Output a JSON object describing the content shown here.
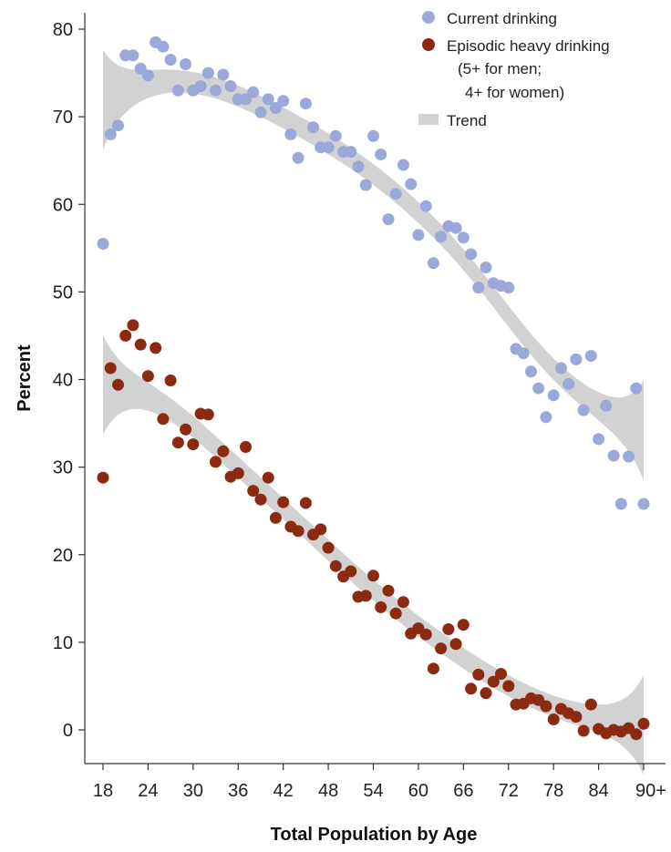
{
  "chart_data": {
    "type": "scatter",
    "xlabel": "Total Population by Age",
    "ylabel": "Percent",
    "xlim": [
      16.5,
      92.5
    ],
    "ylim": [
      -4,
      83
    ],
    "x_ticks": [
      18,
      24,
      30,
      36,
      42,
      48,
      54,
      60,
      66,
      72,
      78,
      84,
      90
    ],
    "x_tick_labels": [
      "18",
      "24",
      "30",
      "36",
      "42",
      "48",
      "54",
      "60",
      "66",
      "72",
      "78",
      "84",
      "90+"
    ],
    "y_ticks": [
      0,
      10,
      20,
      30,
      40,
      50,
      60,
      70,
      80
    ],
    "y_tick_labels": [
      "0",
      "10",
      "20",
      "30",
      "40",
      "50",
      "60",
      "70",
      "80"
    ],
    "grid": false,
    "legend_position": "top-right",
    "legend": {
      "current": "Current drinking",
      "heavy_line1": "Episodic heavy drinking",
      "heavy_line2": "(5+ for men;",
      "heavy_line3": "4+ for women)",
      "trend": "Trend"
    },
    "colors": {
      "current": "#9aa9d8",
      "heavy": "#8b2a10",
      "trend": "#d2d2d2"
    },
    "series": [
      {
        "name": "Current drinking",
        "x": [
          18,
          19,
          20,
          21,
          22,
          23,
          24,
          25,
          26,
          27,
          28,
          29,
          30,
          31,
          32,
          33,
          34,
          35,
          36,
          37,
          38,
          39,
          40,
          41,
          42,
          43,
          44,
          45,
          46,
          47,
          48,
          49,
          50,
          51,
          52,
          53,
          54,
          55,
          56,
          57,
          58,
          59,
          60,
          61,
          62,
          63,
          64,
          65,
          66,
          67,
          68,
          69,
          70,
          71,
          72,
          73,
          74,
          75,
          76,
          77,
          78,
          79,
          80,
          81,
          82,
          83,
          84,
          85,
          86,
          87,
          88,
          89,
          90
        ],
        "y": [
          55.5,
          68,
          69,
          77,
          77,
          75.5,
          74.7,
          78.5,
          78,
          76.5,
          73,
          76,
          73,
          73.5,
          75,
          73,
          74.8,
          73.5,
          72,
          72,
          72.8,
          70.5,
          72,
          71,
          71.8,
          68,
          65.3,
          71.5,
          68.8,
          66.5,
          66.5,
          67.8,
          66,
          66,
          64.3,
          62.2,
          67.8,
          65.7,
          58.3,
          61.2,
          64.5,
          62.3,
          56.5,
          59.8,
          53.3,
          56.3,
          57.5,
          57.3,
          56.2,
          54.3,
          50.5,
          52.8,
          51,
          50.7,
          50.5,
          43.5,
          43,
          40.9,
          39,
          35.7,
          38.2,
          41.3,
          39.5,
          42.3,
          36.5,
          42.7,
          33.2,
          37,
          31.3,
          25.8,
          31.2,
          39,
          25.8
        ]
      },
      {
        "name": "Episodic heavy drinking",
        "x": [
          18,
          19,
          20,
          21,
          22,
          23,
          24,
          25,
          26,
          27,
          28,
          29,
          30,
          31,
          32,
          33,
          34,
          35,
          36,
          37,
          38,
          39,
          40,
          41,
          42,
          43,
          44,
          45,
          46,
          47,
          48,
          49,
          50,
          51,
          52,
          53,
          54,
          55,
          56,
          57,
          58,
          59,
          60,
          61,
          62,
          63,
          64,
          65,
          66,
          67,
          68,
          69,
          70,
          71,
          72,
          73,
          74,
          75,
          76,
          77,
          78,
          79,
          80,
          81,
          82,
          83,
          84,
          85,
          86,
          87,
          88,
          89,
          90
        ],
        "y": [
          28.8,
          41.3,
          39.4,
          45,
          46.2,
          44,
          40.4,
          43.6,
          35.5,
          39.9,
          32.8,
          34.3,
          32.6,
          36.1,
          36,
          30.6,
          31.8,
          28.9,
          29.3,
          32.3,
          27.3,
          26.3,
          28.8,
          24.2,
          26,
          23.2,
          22.7,
          25.9,
          22.3,
          22.9,
          20.8,
          18.7,
          17.5,
          18.1,
          15.2,
          15.3,
          17.6,
          14,
          15.9,
          13.3,
          14.6,
          11,
          11.6,
          10.9,
          7,
          9.3,
          11.5,
          9.8,
          12,
          4.7,
          6.3,
          4.2,
          5.5,
          6.4,
          5,
          2.9,
          3,
          3.6,
          3.4,
          2.7,
          1.2,
          2.4,
          1.9,
          1.5,
          -0.1,
          2.9,
          0.1,
          -0.4,
          0,
          -0.2,
          0.2,
          -0.5,
          0.7
        ]
      }
    ]
  }
}
